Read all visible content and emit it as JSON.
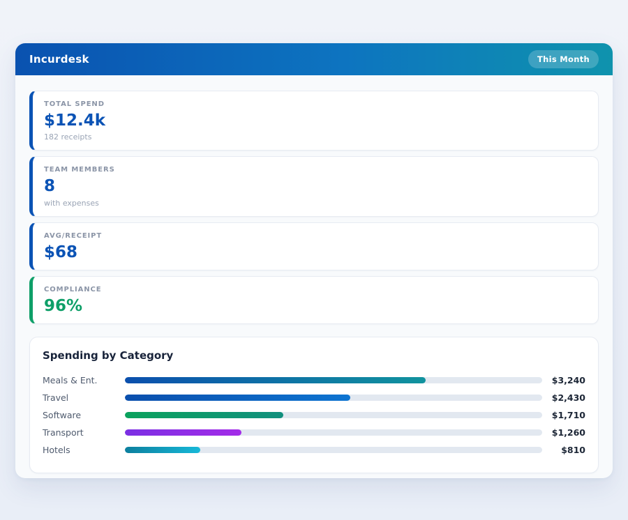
{
  "app": {
    "title": "Incurdesk",
    "period_badge": "This Month"
  },
  "stats": [
    {
      "id": "total-spend",
      "label": "TOTAL SPEND",
      "value": "$12.4k",
      "sub": "182 receipts",
      "accent": "#0b53b5",
      "value_color": "#0b53b5"
    },
    {
      "id": "team-members",
      "label": "TEAM MEMBERS",
      "value": "8",
      "sub": "with expenses",
      "accent": "#0b53b5",
      "value_color": "#0b53b5"
    },
    {
      "id": "avg-receipt",
      "label": "AVG/RECEIPT",
      "value": "$68",
      "sub": "",
      "accent": "#0b53b5",
      "value_color": "#0b53b5"
    },
    {
      "id": "compliance",
      "label": "COMPLIANCE",
      "value": "96%",
      "sub": "",
      "accent": "#0e9f68",
      "value_color": "#0e9f68"
    }
  ],
  "chart_data": {
    "type": "bar",
    "orientation": "horizontal",
    "title": "Spending by Category",
    "categories": [
      "Meals & Ent.",
      "Travel",
      "Software",
      "Transport",
      "Hotels"
    ],
    "values": [
      3240,
      2430,
      1710,
      1260,
      810
    ],
    "value_labels": [
      "$3,240",
      "$2,430",
      "$1,710",
      "$1,260",
      "$810"
    ],
    "scale_max": 4500,
    "track_color": "#e2e8f0",
    "bar_gradients": [
      [
        "#0b4fad",
        "#11939e"
      ],
      [
        "#0b4fad",
        "#0d74d1"
      ],
      [
        "#0ba25d",
        "#12907e"
      ],
      [
        "#7b2fe3",
        "#a32ce8"
      ],
      [
        "#0c7f9e",
        "#17b8d8"
      ]
    ],
    "grid": false,
    "legend": false
  },
  "theme": {
    "header_gradient_start": "#0a52b0",
    "header_gradient_end": "#0f93ad",
    "panel_bg": "#f8fafc",
    "page_bg": "#edf1f8",
    "accent_blue": "#0b53b5",
    "accent_green": "#0e9f68"
  }
}
